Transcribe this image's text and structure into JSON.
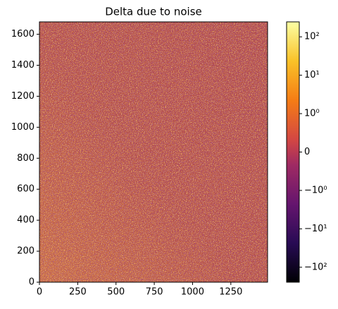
{
  "chart_data": {
    "type": "heatmap",
    "title": "Delta due to noise",
    "xlim": [
      0,
      1490
    ],
    "xticks": [
      0,
      250,
      500,
      750,
      1000,
      1250
    ],
    "ylim": [
      0,
      1680
    ],
    "yticks": [
      0,
      200,
      400,
      600,
      800,
      1000,
      1200,
      1400,
      1600
    ],
    "colorbar": {
      "scale": "symlog",
      "linthresh": 1,
      "lim": [
        -245,
        245
      ],
      "ticks": [
        {
          "value": 100,
          "label": "10²"
        },
        {
          "value": 10,
          "label": "10¹"
        },
        {
          "value": 1,
          "label": "10⁰"
        },
        0,
        {
          "value": -1,
          "label": "−10⁰"
        },
        {
          "value": -10,
          "label": "−10¹"
        },
        {
          "value": -100,
          "label": "−10²"
        }
      ]
    }
  }
}
